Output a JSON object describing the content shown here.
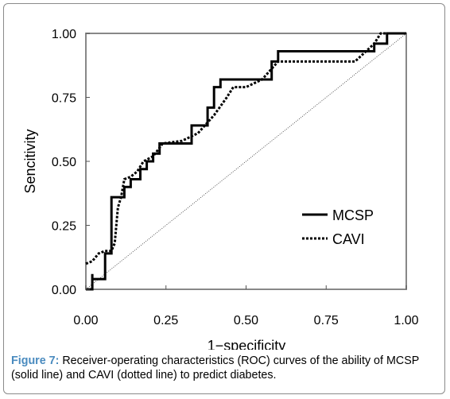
{
  "caption": {
    "lead": "Figure 7:",
    "text": " Receiver-operating characteristics (ROC) curves of the ability of MCSP (solid line) and CAVI (dotted line) to predict diabetes."
  },
  "chart_data": {
    "type": "line",
    "title": "",
    "xlabel": "1−specificity",
    "ylabel": "Sencitivity",
    "xlim": [
      0,
      1
    ],
    "ylim": [
      0,
      1
    ],
    "x_ticks": [
      "0.00",
      "0.25",
      "0.50",
      "0.75",
      "1.00"
    ],
    "y_ticks": [
      "0.00",
      "0.25",
      "0.50",
      "0.75",
      "1.00"
    ],
    "grid": false,
    "legend_position": "lower-right",
    "reference_line": {
      "x": [
        0,
        1
      ],
      "y": [
        0,
        1
      ],
      "style": "dotted"
    },
    "series": [
      {
        "name": "MCSP",
        "style": "solid",
        "color": "#000000",
        "x": [
          0,
          0.02,
          0.02,
          0.02,
          0.06,
          0.06,
          0.08,
          0.08,
          0.12,
          0.12,
          0.14,
          0.14,
          0.17,
          0.17,
          0.19,
          0.19,
          0.21,
          0.21,
          0.23,
          0.23,
          0.33,
          0.33,
          0.38,
          0.38,
          0.4,
          0.4,
          0.42,
          0.42,
          0.58,
          0.58,
          0.6,
          0.6,
          0.9,
          0.9,
          0.94,
          0.94,
          1.0
        ],
        "y": [
          0,
          0,
          0.06,
          0.04,
          0.04,
          0.14,
          0.14,
          0.36,
          0.36,
          0.4,
          0.4,
          0.43,
          0.43,
          0.47,
          0.47,
          0.5,
          0.5,
          0.53,
          0.53,
          0.57,
          0.57,
          0.64,
          0.64,
          0.71,
          0.71,
          0.79,
          0.79,
          0.82,
          0.82,
          0.89,
          0.89,
          0.93,
          0.93,
          0.96,
          0.96,
          1.0,
          1.0
        ]
      },
      {
        "name": "CAVI",
        "style": "dotted",
        "color": "#000000",
        "x": [
          0,
          0.02,
          0.04,
          0.06,
          0.08,
          0.09,
          0.1,
          0.11,
          0.12,
          0.14,
          0.16,
          0.18,
          0.21,
          0.24,
          0.3,
          0.35,
          0.4,
          0.44,
          0.46,
          0.5,
          0.55,
          0.6,
          0.62,
          0.7,
          0.84,
          0.9,
          0.92,
          0.94,
          1.0
        ],
        "y": [
          0.1,
          0.11,
          0.14,
          0.15,
          0.15,
          0.18,
          0.32,
          0.36,
          0.43,
          0.44,
          0.46,
          0.5,
          0.52,
          0.57,
          0.58,
          0.61,
          0.68,
          0.75,
          0.79,
          0.79,
          0.82,
          0.89,
          0.89,
          0.89,
          0.89,
          0.96,
          1.0,
          1.0,
          1.0
        ]
      }
    ]
  }
}
